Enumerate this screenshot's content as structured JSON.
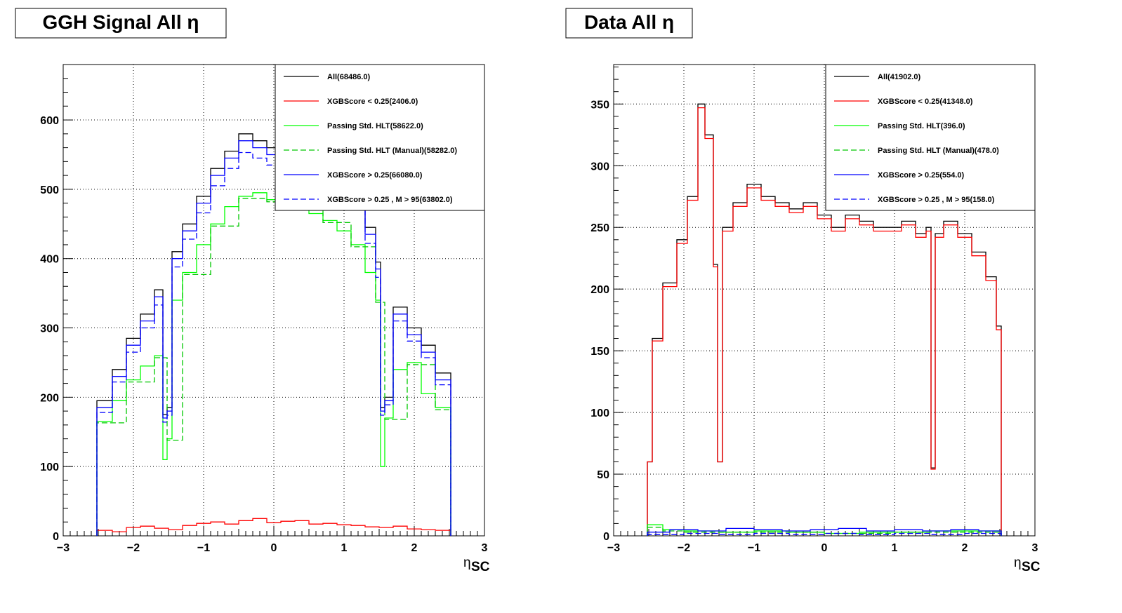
{
  "chart_data": [
    {
      "type": "line",
      "title": "GGH Signal All η",
      "xlabel": "η",
      "xlabel_sub": "SC",
      "ylabel": "",
      "xlim": [
        -3,
        3
      ],
      "ylim": [
        0,
        600
      ],
      "xticks": [
        "−3",
        "−2",
        "−1",
        "0",
        "1",
        "2",
        "3"
      ],
      "yticks": [
        "0",
        "100",
        "200",
        "300",
        "400",
        "500",
        "600"
      ],
      "grid": true,
      "legend_position": "top-right",
      "series": [
        {
          "name": "All(68486.0)",
          "color": "#000000",
          "dash": "solid",
          "x": [
            -2.52,
            -2.3,
            -2.1,
            -1.9,
            -1.7,
            -1.58,
            -1.52,
            -1.45,
            -1.3,
            -1.1,
            -0.9,
            -0.7,
            -0.5,
            -0.3,
            -0.1,
            0.1,
            0.3,
            0.5,
            0.7,
            0.9,
            1.1,
            1.3,
            1.45,
            1.52,
            1.58,
            1.7,
            1.9,
            2.1,
            2.3,
            2.52
          ],
          "y": [
            195,
            240,
            285,
            320,
            355,
            175,
            185,
            410,
            450,
            490,
            530,
            555,
            580,
            570,
            560,
            560,
            555,
            545,
            535,
            520,
            500,
            445,
            395,
            185,
            200,
            330,
            300,
            275,
            235,
            185
          ]
        },
        {
          "name": "XGBScore < 0.25(2406.0)",
          "color": "#ff0000",
          "dash": "solid",
          "x": [
            -2.52,
            -2.3,
            -2.1,
            -1.9,
            -1.7,
            -1.5,
            -1.3,
            -1.1,
            -0.9,
            -0.7,
            -0.5,
            -0.3,
            -0.1,
            0.1,
            0.3,
            0.5,
            0.7,
            0.9,
            1.1,
            1.3,
            1.5,
            1.7,
            1.9,
            2.1,
            2.3,
            2.52
          ],
          "y": [
            8,
            6,
            12,
            14,
            11,
            9,
            15,
            18,
            20,
            17,
            22,
            25,
            19,
            21,
            22,
            17,
            18,
            16,
            15,
            13,
            12,
            14,
            10,
            9,
            8,
            6
          ]
        },
        {
          "name": "Passing Std. HLT(58622.0)",
          "color": "#00ff00",
          "dash": "solid",
          "x": [
            -2.52,
            -2.3,
            -2.1,
            -1.9,
            -1.7,
            -1.58,
            -1.52,
            -1.45,
            -1.3,
            -1.1,
            -0.9,
            -0.7,
            -0.5,
            -0.3,
            -0.1,
            0.1,
            0.3,
            0.5,
            0.7,
            0.9,
            1.1,
            1.3,
            1.45,
            1.52,
            1.58,
            1.7,
            1.9,
            2.1,
            2.3,
            2.52
          ],
          "y": [
            165,
            195,
            225,
            245,
            260,
            110,
            140,
            340,
            380,
            420,
            450,
            475,
            490,
            495,
            485,
            480,
            475,
            465,
            455,
            440,
            420,
            380,
            340,
            100,
            170,
            240,
            250,
            205,
            185,
            165
          ]
        },
        {
          "name": "Passing Std. HLT (Manual)(58282.0)",
          "color": "#00c800",
          "dash": "dashed",
          "x": [
            -2.52,
            -2.1,
            -1.7,
            -1.52,
            -1.3,
            -0.9,
            -0.5,
            -0.1,
            0.3,
            0.7,
            1.1,
            1.45,
            1.58,
            1.9,
            2.3,
            2.52
          ],
          "y": [
            163,
            222,
            257,
            138,
            377,
            447,
            487,
            482,
            472,
            452,
            417,
            337,
            168,
            247,
            182,
            163
          ]
        },
        {
          "name": "XGBScore > 0.25(66080.0)",
          "color": "#0000ff",
          "dash": "solid",
          "x": [
            -2.52,
            -2.3,
            -2.1,
            -1.9,
            -1.7,
            -1.58,
            -1.52,
            -1.45,
            -1.3,
            -1.1,
            -0.9,
            -0.7,
            -0.5,
            -0.3,
            -0.1,
            0.1,
            0.3,
            0.5,
            0.7,
            0.9,
            1.1,
            1.3,
            1.45,
            1.52,
            1.58,
            1.7,
            1.9,
            2.1,
            2.3,
            2.52
          ],
          "y": [
            185,
            230,
            275,
            310,
            345,
            170,
            180,
            400,
            440,
            480,
            520,
            545,
            570,
            560,
            550,
            550,
            545,
            535,
            525,
            510,
            490,
            435,
            385,
            180,
            195,
            320,
            290,
            265,
            225,
            180
          ]
        },
        {
          "name": "XGBScore > 0.25 , M > 95(63802.0)",
          "color": "#0000ff",
          "dash": "dashed",
          "x": [
            -2.52,
            -2.3,
            -2.1,
            -1.9,
            -1.7,
            -1.58,
            -1.52,
            -1.45,
            -1.3,
            -1.1,
            -0.9,
            -0.7,
            -0.5,
            -0.3,
            -0.1,
            0.1,
            0.3,
            0.5,
            0.7,
            0.9,
            1.1,
            1.3,
            1.45,
            1.52,
            1.58,
            1.7,
            1.9,
            2.1,
            2.3,
            2.52
          ],
          "y": [
            178,
            222,
            265,
            300,
            333,
            164,
            174,
            388,
            428,
            466,
            505,
            530,
            553,
            545,
            535,
            535,
            530,
            520,
            510,
            495,
            476,
            422,
            373,
            174,
            189,
            310,
            281,
            257,
            218,
            175
          ]
        }
      ]
    },
    {
      "type": "line",
      "title": "Data All η",
      "xlabel": "η",
      "xlabel_sub": "SC",
      "ylabel": "",
      "xlim": [
        -3,
        3
      ],
      "ylim": [
        0,
        350
      ],
      "xticks": [
        "−3",
        "−2",
        "−1",
        "0",
        "1",
        "2",
        "3"
      ],
      "yticks": [
        "0",
        "50",
        "100",
        "150",
        "200",
        "250",
        "300",
        "350"
      ],
      "grid": true,
      "legend_position": "top-right",
      "series": [
        {
          "name": "All(41902.0)",
          "color": "#000000",
          "dash": "solid",
          "x": [
            -2.52,
            -2.45,
            -2.3,
            -2.1,
            -1.95,
            -1.8,
            -1.7,
            -1.58,
            -1.52,
            -1.45,
            -1.3,
            -1.1,
            -0.9,
            -0.7,
            -0.5,
            -0.3,
            -0.1,
            0.1,
            0.3,
            0.5,
            0.7,
            0.9,
            1.1,
            1.3,
            1.45,
            1.52,
            1.58,
            1.7,
            1.9,
            2.1,
            2.3,
            2.45,
            2.52
          ],
          "y": [
            60,
            160,
            205,
            240,
            275,
            350,
            325,
            220,
            60,
            250,
            270,
            285,
            275,
            270,
            265,
            270,
            260,
            250,
            260,
            255,
            250,
            250,
            255,
            245,
            250,
            55,
            245,
            255,
            245,
            230,
            210,
            170,
            10
          ]
        },
        {
          "name": "XGBScore < 0.25(41348.0)",
          "color": "#ff0000",
          "dash": "solid",
          "x": [
            -2.52,
            -2.45,
            -2.3,
            -2.1,
            -1.95,
            -1.8,
            -1.7,
            -1.58,
            -1.52,
            -1.45,
            -1.3,
            -1.1,
            -0.9,
            -0.7,
            -0.5,
            -0.3,
            -0.1,
            0.1,
            0.3,
            0.5,
            0.7,
            0.9,
            1.1,
            1.3,
            1.45,
            1.52,
            1.58,
            1.7,
            1.9,
            2.1,
            2.3,
            2.45,
            2.52
          ],
          "y": [
            60,
            158,
            202,
            237,
            272,
            347,
            322,
            218,
            60,
            247,
            267,
            282,
            272,
            267,
            262,
            267,
            257,
            247,
            257,
            252,
            247,
            247,
            252,
            242,
            247,
            54,
            242,
            252,
            242,
            227,
            207,
            167,
            10
          ]
        },
        {
          "name": "Passing Std. HLT(396.0)",
          "color": "#00ff00",
          "dash": "solid",
          "x": [
            -2.52,
            -2.3,
            -2.0,
            -1.5,
            -1.0,
            -0.5,
            0.0,
            0.5,
            1.0,
            1.5,
            2.0,
            2.52
          ],
          "y": [
            9,
            5,
            4,
            3,
            4,
            3,
            2,
            3,
            3,
            4,
            4,
            3
          ]
        },
        {
          "name": "Passing Std. HLT (Manual)(478.0)",
          "color": "#00c800",
          "dash": "dashed",
          "x": [
            -2.52,
            -2.3,
            -2.0,
            -1.5,
            -1.0,
            -0.5,
            0.0,
            0.5,
            1.0,
            1.5,
            2.0,
            2.52
          ],
          "y": [
            7,
            4,
            3,
            3,
            3,
            3,
            2,
            2,
            3,
            3,
            3,
            2
          ]
        },
        {
          "name": "XGBScore > 0.25(554.0)",
          "color": "#0000ff",
          "dash": "solid",
          "x": [
            -2.52,
            -2.2,
            -1.8,
            -1.4,
            -1.0,
            -0.6,
            -0.2,
            0.2,
            0.6,
            1.0,
            1.4,
            1.8,
            2.2,
            2.52
          ],
          "y": [
            3,
            5,
            4,
            6,
            5,
            4,
            5,
            6,
            4,
            5,
            4,
            5,
            4,
            3
          ]
        },
        {
          "name": "XGBScore > 0.25 , M > 95(158.0)",
          "color": "#0000ff",
          "dash": "dashed",
          "x": [
            -2.52,
            -2.0,
            -1.5,
            -1.0,
            -0.5,
            0.0,
            0.5,
            1.0,
            1.5,
            2.0,
            2.52
          ],
          "y": [
            1,
            2,
            1,
            2,
            1,
            2,
            1,
            2,
            1,
            2,
            1
          ]
        }
      ]
    }
  ]
}
